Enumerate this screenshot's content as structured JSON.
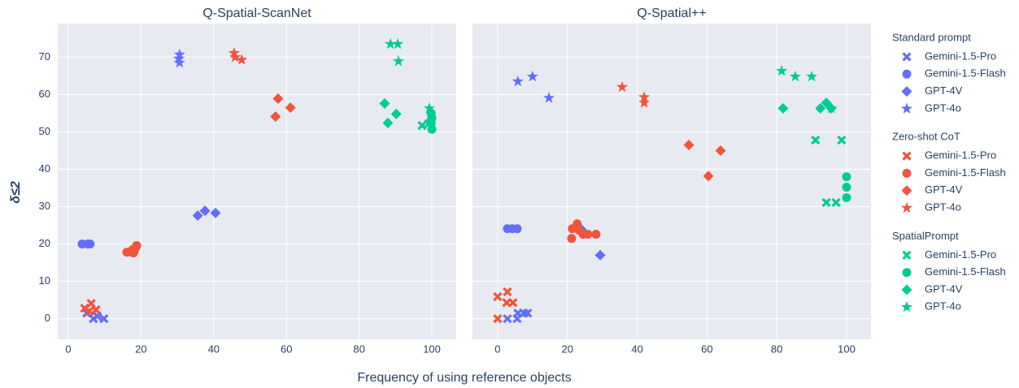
{
  "chart_data": {
    "type": "scatter",
    "x_label": "Frequency of using reference objects",
    "y_label": "δ≤2",
    "ylim": [
      -5.5,
      79
    ],
    "yticks": [
      0,
      10,
      20,
      30,
      40,
      50,
      60,
      70
    ],
    "grid": true,
    "legend_position": "right",
    "panels": [
      {
        "title": "Q-Spatial-ScanNet",
        "xlim": [
          -2.9,
          106.7
        ],
        "xticks": [
          0,
          20,
          40,
          60,
          80,
          100
        ]
      },
      {
        "title": "Q-Spatial++",
        "xlim": [
          -7.2,
          107
        ],
        "xticks": [
          0,
          20,
          40,
          60,
          80,
          100
        ]
      }
    ],
    "groups": [
      {
        "name": "Standard prompt",
        "color": "#636efa",
        "series": [
          {
            "name": "Gemini-1.5-Pro",
            "marker": "x",
            "x": [
              [
                5.1,
                6.9,
                8.0,
                9.8
              ],
              [
                2.8,
                5.6,
                5.8,
                7.5,
                8.6
              ]
            ],
            "y": [
              [
                1.5,
                0,
                0.7,
                0
              ],
              [
                0,
                0,
                1.5,
                1.5,
                1.5
              ]
            ]
          },
          {
            "name": "Gemini-1.5-Flash",
            "marker": "circle",
            "x": [
              [
                3.8,
                5.4,
                6.0
              ],
              [
                2.8,
                4.2,
                5.6
              ]
            ],
            "y": [
              [
                20,
                20,
                20
              ],
              [
                24.1,
                24.1,
                24.1
              ]
            ]
          },
          {
            "name": "GPT-4V",
            "marker": "diamond",
            "x": [
              [
                35.6,
                37.6,
                40.5
              ],
              [
                24.0,
                29.4
              ]
            ],
            "y": [
              [
                27.6,
                28.9,
                28.3
              ],
              [
                23.9,
                17.0
              ]
            ]
          },
          {
            "name": "GPT-4o",
            "marker": "star",
            "x": [
              [
                30.6,
                30.4,
                30.6
              ],
              [
                5.8,
                10.0,
                14.7
              ]
            ],
            "y": [
              [
                70.7,
                69.6,
                68.5
              ],
              [
                63.5,
                64.8,
                59.1
              ]
            ]
          }
        ]
      },
      {
        "name": "Zero-shot CoT",
        "color": "#ef553b",
        "series": [
          {
            "name": "Gemini-1.5-Pro",
            "marker": "x",
            "x": [
              [
                4.5,
                6.3,
                7.6,
                5.8
              ],
              [
                0,
                2.8,
                2.6,
                4.4,
                0
              ]
            ],
            "y": [
              [
                2.8,
                4.1,
                2.4,
                2.0
              ],
              [
                5.9,
                7.2,
                4.3,
                4.3,
                0
              ]
            ]
          },
          {
            "name": "Gemini-1.5-Flash",
            "marker": "circle",
            "x": [
              [
                16.1,
                17.7,
                18.1,
                18.6,
                18.8,
                17.9
              ],
              [
                21.2,
                21.4,
                22.8,
                23.3,
                24.5,
                25.9,
                28.2
              ]
            ],
            "y": [
              [
                17.8,
                18.5,
                18.0,
                19.1,
                19.6,
                17.6
              ],
              [
                21.5,
                24.1,
                25.4,
                23.7,
                22.6,
                22.6,
                22.6
              ]
            ]
          },
          {
            "name": "GPT-4V",
            "marker": "diamond",
            "x": [
              [
                57.7,
                57.0,
                61.1
              ],
              [
                54.8,
                63.9,
                60.4
              ]
            ],
            "y": [
              [
                58.9,
                54.1,
                56.5
              ],
              [
                46.5,
                45.0,
                38.2
              ]
            ]
          },
          {
            "name": "GPT-4o",
            "marker": "star",
            "x": [
              [
                45.6,
                45.9,
                47.7
              ],
              [
                35.7,
                42.0,
                42.0
              ]
            ],
            "y": [
              [
                71.1,
                70.0,
                69.3
              ],
              [
                62.0,
                59.3,
                57.8
              ]
            ]
          }
        ]
      },
      {
        "name": "SpatialPrompt",
        "color": "#00cc96",
        "series": [
          {
            "name": "Gemini-1.5-Pro",
            "marker": "x",
            "x": [
              [
                97.3,
                99.1
              ],
              [
                91.1,
                98.6,
                94.2,
                97.0
              ]
            ],
            "y": [
              [
                51.7,
                52.2
              ],
              [
                47.8,
                47.8,
                31.1,
                31.1
              ]
            ]
          },
          {
            "name": "Gemini-1.5-Flash",
            "marker": "circle",
            "x": [
              [
                99.8,
                100,
                99.8,
                100,
                99.8
              ],
              [
                100,
                100,
                100
              ]
            ],
            "y": [
              [
                55.0,
                53.7,
                52.4,
                50.7,
                53.0
              ],
              [
                38.0,
                35.2,
                32.4
              ]
            ]
          },
          {
            "name": "GPT-4V",
            "marker": "diamond",
            "x": [
              [
                87.0,
                87.9,
                90.2
              ],
              [
                81.8,
                92.5,
                94.2,
                95.6
              ]
            ],
            "y": [
              [
                57.6,
                52.4,
                54.8
              ],
              [
                56.3,
                56.3,
                57.8,
                56.3
              ]
            ]
          },
          {
            "name": "GPT-4o",
            "marker": "star",
            "x": [
              [
                88.6,
                90.6,
                90.8,
                99.3
              ],
              [
                81.4,
                85.3,
                90.0,
                95.6
              ]
            ],
            "y": [
              [
                73.5,
                73.5,
                68.9,
                56.3
              ],
              [
                66.3,
                64.8,
                64.8,
                56.3
              ]
            ]
          }
        ]
      }
    ]
  }
}
